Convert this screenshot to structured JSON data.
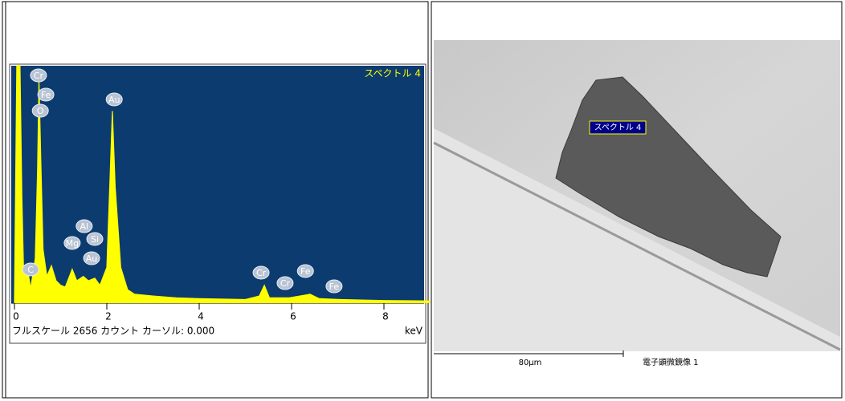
{
  "chart_data": {
    "type": "area",
    "title": "スペクトル 4",
    "footer": "フルスケール 2656 カウント カーソル: 0.000",
    "x_label": "keV",
    "color": "#ffff00",
    "background": "#0b3b6f",
    "x": [
      0,
      0.05,
      0.08,
      0.12,
      0.16,
      0.2,
      0.28,
      0.35,
      0.45,
      0.5,
      0.53,
      0.57,
      0.62,
      0.7,
      0.8,
      0.9,
      1.0,
      1.1,
      1.25,
      1.35,
      1.49,
      1.6,
      1.74,
      1.85,
      2.0,
      2.07,
      2.12,
      2.18,
      2.3,
      2.45,
      2.6,
      3.0,
      3.5,
      4.0,
      5.0,
      5.3,
      5.41,
      5.52,
      5.95,
      6.4,
      6.6,
      7.06,
      8.0,
      9.0
    ],
    "values": [
      0,
      2656,
      2656,
      2656,
      1200,
      300,
      400,
      160,
      500,
      1500,
      2500,
      1600,
      600,
      300,
      420,
      250,
      200,
      180,
      380,
      250,
      300,
      250,
      280,
      200,
      400,
      1400,
      2150,
      1300,
      400,
      150,
      100,
      80,
      60,
      50,
      40,
      80,
      200,
      60,
      60,
      100,
      50,
      40,
      30,
      25
    ],
    "xlim": [
      0,
      9
    ],
    "ylim": [
      0,
      2656
    ],
    "xticks": [
      0,
      2,
      4,
      6,
      8
    ],
    "annotations": [
      {
        "label": "Cr",
        "x": 0.52,
        "y": 2548
      },
      {
        "label": "Fe",
        "x": 0.68,
        "y": 2333
      },
      {
        "label": "O",
        "x": 0.56,
        "y": 2153
      },
      {
        "label": "Au",
        "x": 2.16,
        "y": 2279
      },
      {
        "label": "Al",
        "x": 1.51,
        "y": 861
      },
      {
        "label": "Si",
        "x": 1.74,
        "y": 718
      },
      {
        "label": "Mg",
        "x": 1.25,
        "y": 673
      },
      {
        "label": "Au",
        "x": 1.67,
        "y": 502
      },
      {
        "label": "C",
        "x": 0.35,
        "y": 377
      },
      {
        "label": "Cr",
        "x": 5.34,
        "y": 341
      },
      {
        "label": "Cr",
        "x": 5.86,
        "y": 224
      },
      {
        "label": "Fe",
        "x": 6.3,
        "y": 359
      },
      {
        "label": "Fe",
        "x": 6.92,
        "y": 188
      }
    ]
  },
  "image": {
    "label": "スペクトル 4",
    "scale_bar": "80μm",
    "caption": "電子顕微鏡像 1"
  }
}
